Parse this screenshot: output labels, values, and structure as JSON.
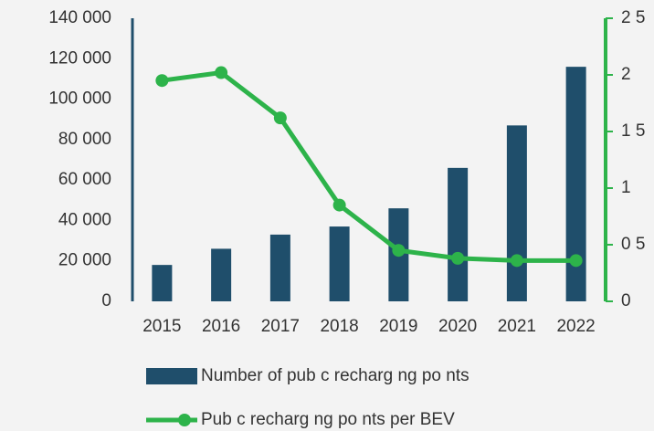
{
  "chart_data": {
    "type": "bar",
    "categories": [
      "2015",
      "2016",
      "2017",
      "2018",
      "2019",
      "2020",
      "2021",
      "2022"
    ],
    "series": [
      {
        "name": "Number of pub c recharg ng po nts",
        "color": "#1f4e6b",
        "type": "bar",
        "values": [
          18000,
          26000,
          33000,
          37000,
          46000,
          66000,
          87000,
          116000
        ]
      },
      {
        "name": "Pub c recharg ng po nts per BEV",
        "color": "#2db34a",
        "type": "line",
        "axis": "y2",
        "values": [
          1.95,
          2.02,
          1.62,
          0.85,
          0.45,
          0.38,
          0.36,
          0.36
        ]
      }
    ],
    "ylim": [
      0,
      140000
    ],
    "yticks": [
      0,
      {
        "value": 20000,
        "label": "20 000"
      },
      {
        "value": 40000,
        "label": "40 000"
      },
      {
        "value": 60000,
        "label": "60 000"
      },
      {
        "value": 80000,
        "label": "80 000"
      },
      {
        "value": 100000,
        "label": "100 000"
      },
      {
        "value": 120000,
        "label": "120 000"
      },
      {
        "value": 140000,
        "label": "140 000"
      }
    ],
    "y2lim": [
      0,
      2.5
    ],
    "y2ticks": [
      0,
      {
        "value": 0.5,
        "label": "0 5"
      },
      1,
      {
        "value": 1.5,
        "label": "1 5"
      },
      2,
      {
        "value": 2.5,
        "label": "2 5"
      }
    ],
    "grid": false,
    "legend": "bottom"
  }
}
